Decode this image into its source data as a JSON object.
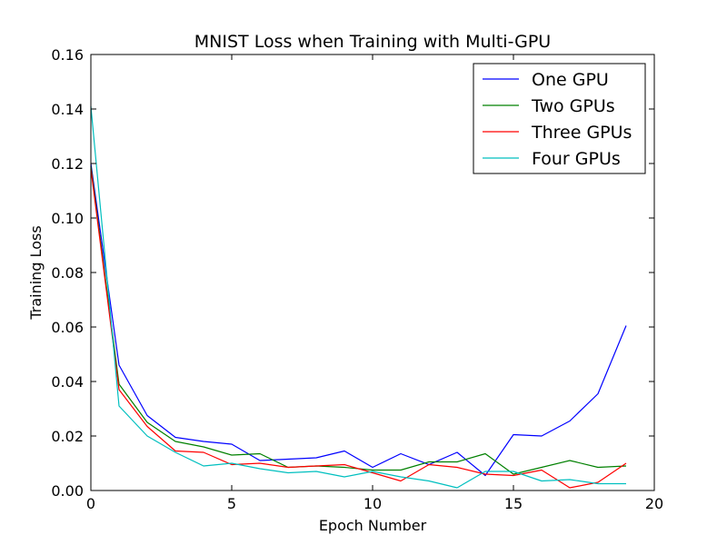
{
  "chart_data": {
    "type": "line",
    "title": "MNIST Loss when Training with Multi-GPU",
    "xlabel": "Epoch Number",
    "ylabel": "Training Loss",
    "xlim": [
      0,
      20
    ],
    "ylim": [
      0,
      0.16
    ],
    "xticks": [
      0,
      5,
      10,
      15,
      20
    ],
    "xtick_labels": [
      "0",
      "5",
      "10",
      "15",
      "20"
    ],
    "yticks": [
      0,
      0.02,
      0.04,
      0.06,
      0.08,
      0.1,
      0.12,
      0.14,
      0.16
    ],
    "ytick_labels": [
      "0.00",
      "0.02",
      "0.04",
      "0.06",
      "0.08",
      "0.10",
      "0.12",
      "0.14",
      "0.16"
    ],
    "grid": false,
    "legend_position": "top-right",
    "x": [
      0,
      1,
      2,
      3,
      4,
      5,
      6,
      7,
      8,
      9,
      10,
      11,
      12,
      13,
      14,
      15,
      16,
      17,
      18,
      19
    ],
    "series": [
      {
        "name": "One GPU",
        "color": "#0000ff",
        "values": [
          0.12,
          0.046,
          0.0275,
          0.0195,
          0.018,
          0.017,
          0.011,
          0.0115,
          0.012,
          0.0145,
          0.0085,
          0.0135,
          0.0095,
          0.014,
          0.0055,
          0.0205,
          0.02,
          0.0255,
          0.0355,
          0.0605
        ]
      },
      {
        "name": "Two GPUs",
        "color": "#008000",
        "values": [
          0.119,
          0.039,
          0.025,
          0.018,
          0.016,
          0.013,
          0.0135,
          0.0085,
          0.009,
          0.0085,
          0.0075,
          0.0075,
          0.0105,
          0.0105,
          0.0135,
          0.006,
          0.0085,
          0.011,
          0.0085,
          0.009
        ]
      },
      {
        "name": "Three GPUs",
        "color": "#ff0000",
        "values": [
          0.118,
          0.037,
          0.0235,
          0.0145,
          0.014,
          0.0095,
          0.01,
          0.0085,
          0.009,
          0.0095,
          0.0065,
          0.0035,
          0.0095,
          0.0085,
          0.006,
          0.0055,
          0.0075,
          0.001,
          0.003,
          0.01
        ]
      },
      {
        "name": "Four GPUs",
        "color": "#00bfbf",
        "values": [
          0.141,
          0.031,
          0.02,
          0.014,
          0.009,
          0.01,
          0.008,
          0.0065,
          0.007,
          0.005,
          0.007,
          0.005,
          0.0035,
          0.001,
          0.007,
          0.007,
          0.0035,
          0.004,
          0.0025,
          0.0025
        ]
      }
    ]
  }
}
